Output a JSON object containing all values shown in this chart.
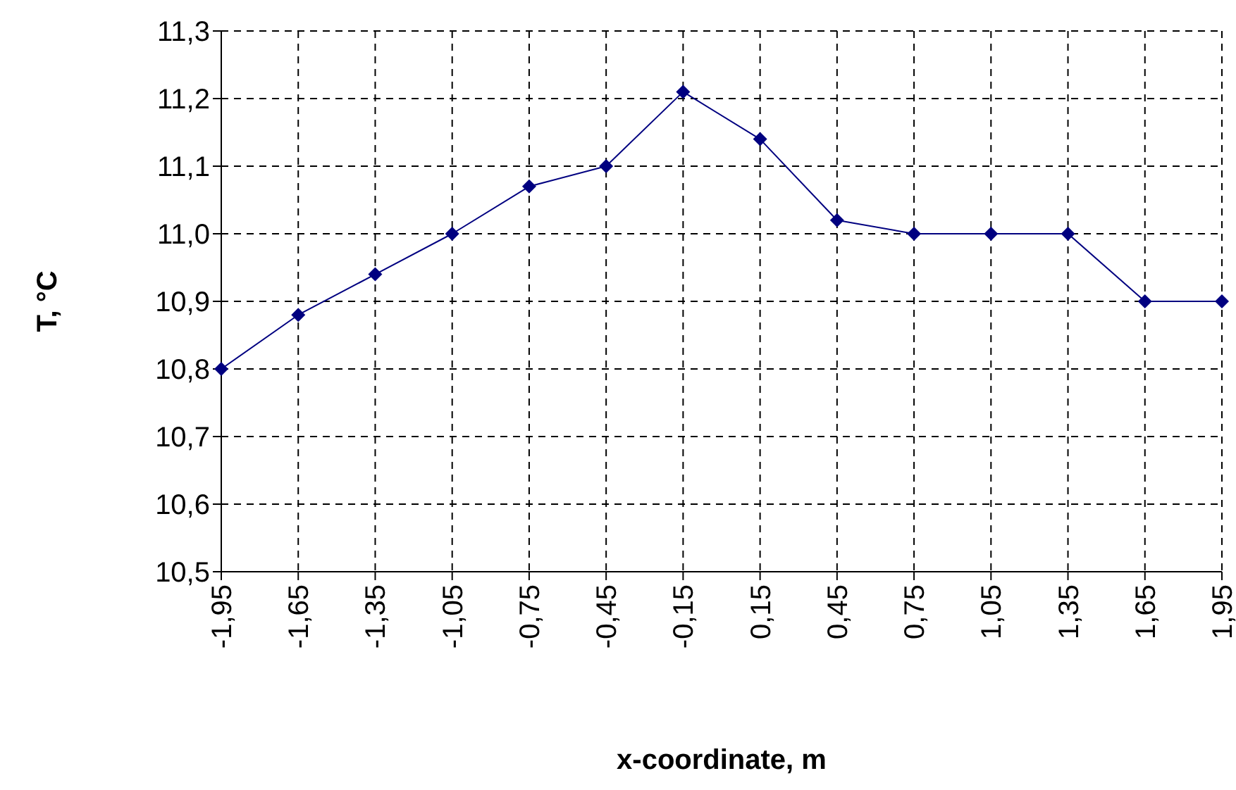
{
  "chart_data": {
    "type": "line",
    "xlabel": "x-coordinate, m",
    "ylabel": "T, °C",
    "categories": [
      "-1,95",
      "-1,65",
      "-1,35",
      "-1,05",
      "-0,75",
      "-0,45",
      "-0,15",
      "0,15",
      "0,45",
      "0,75",
      "1,05",
      "1,35",
      "1,65",
      "1,95"
    ],
    "series": [
      {
        "color": "#000080",
        "values": [
          10.8,
          10.88,
          10.94,
          11.0,
          11.07,
          11.1,
          11.21,
          11.14,
          11.02,
          11.0,
          11.0,
          11.0,
          10.9,
          10.9
        ]
      }
    ],
    "ylim": [
      10.5,
      11.3
    ],
    "yticks": [
      {
        "value": 10.5,
        "label": "10,5"
      },
      {
        "value": 10.6,
        "label": "10,6"
      },
      {
        "value": 10.7,
        "label": "10,7"
      },
      {
        "value": 10.8,
        "label": "10,8"
      },
      {
        "value": 10.9,
        "label": "10,9"
      },
      {
        "value": 11.0,
        "label": "11,0"
      },
      {
        "value": 11.1,
        "label": "11,1"
      },
      {
        "value": 11.2,
        "label": "11,2"
      },
      {
        "value": 11.3,
        "label": "11,3"
      }
    ],
    "grid": true,
    "marker": "diamond",
    "line_style": "solid"
  }
}
